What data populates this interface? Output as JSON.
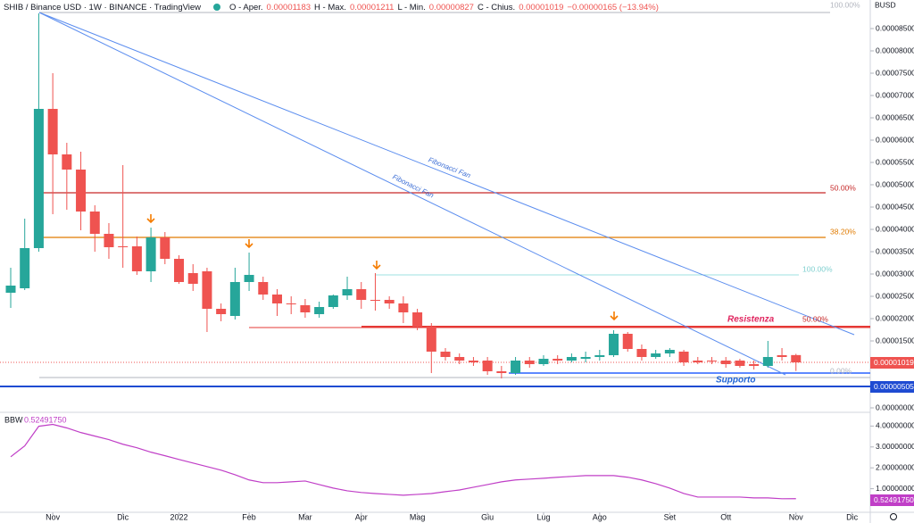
{
  "header": {
    "title": "SHIB / Binance USD · 1W · BINANCE · TradingView",
    "ohlc": [
      {
        "label": "O - Aper.",
        "value": "0.00001183"
      },
      {
        "label": "H - Max.",
        "value": "0.00001211"
      },
      {
        "label": "L - Min.",
        "value": "0.00000827"
      },
      {
        "label": "C - Chius.",
        "value": "0.00001019"
      }
    ],
    "change": "−0.00000165 (−13.94%)",
    "currency": "BUSD"
  },
  "chart_data": [
    {
      "type": "candlestick",
      "categories": [
        null,
        null,
        null,
        null,
        null,
        null,
        null,
        null,
        null,
        null,
        null,
        null,
        null,
        null,
        null,
        null,
        null,
        null,
        null,
        null,
        null,
        null,
        null,
        null,
        null,
        null,
        null,
        null,
        null,
        null,
        null,
        null,
        null,
        null,
        null,
        null,
        null,
        null,
        null,
        null,
        null,
        null,
        null,
        null,
        null,
        null,
        null,
        null,
        null,
        null,
        null,
        null,
        null,
        null,
        null,
        null,
        null
      ],
      "open": [
        2.58e-05,
        2.68e-05,
        3.58e-05,
        6.7e-05,
        5.68e-05,
        5.34e-05,
        4.4e-05,
        3.9e-05,
        3.62e-05,
        3.62e-05,
        3.06e-05,
        3.82e-05,
        3.34e-05,
        3.02e-05,
        3.06e-05,
        2.22e-05,
        2.06e-05,
        2.82e-05,
        2.82e-05,
        2.54e-05,
        2.34e-05,
        2.3e-05,
        2.1e-05,
        2.26e-05,
        2.52e-05,
        2.66e-05,
        2.42e-05,
        2.42e-05,
        2.34e-05,
        2.14e-05,
        1.82e-05,
        1.26e-05,
        1.14e-05,
        1.06e-05,
        1.06e-05,
        8.2e-06,
        7.8e-06,
        1.06e-05,
        9.8e-06,
        1.1e-05,
        1.06e-05,
        1.1e-05,
        1.14e-05,
        1.18e-05,
        1.66e-05,
        1.32e-05,
        1.14e-05,
        1.22e-05,
        1.26e-05,
        1.06e-05,
        1.06e-05,
        1.06e-05,
        1.06e-05,
        9.8e-06,
        9.4e-06,
        1.18e-05,
        1.183e-05
      ],
      "high": [
        3.14e-05,
        4.24e-05,
        8.84e-05,
        7.5e-05,
        5.94e-05,
        5.74e-05,
        4.54e-05,
        4.14e-05,
        5.44e-05,
        3.84e-05,
        4.04e-05,
        3.94e-05,
        3.42e-05,
        3.22e-05,
        3.14e-05,
        2.34e-05,
        3.14e-05,
        3.48e-05,
        2.94e-05,
        2.66e-05,
        2.5e-05,
        2.44e-05,
        2.38e-05,
        2.54e-05,
        2.94e-05,
        2.82e-05,
        3.02e-05,
        2.5e-05,
        2.5e-05,
        2.22e-05,
        1.9e-05,
        1.34e-05,
        1.22e-05,
        1.14e-05,
        1.14e-05,
        9.4e-06,
        1.14e-05,
        1.14e-05,
        1.18e-05,
        1.18e-05,
        1.22e-05,
        1.26e-05,
        1.3e-05,
        1.74e-05,
        1.7e-05,
        1.42e-05,
        1.3e-05,
        1.34e-05,
        1.3e-05,
        1.14e-05,
        1.14e-05,
        1.14e-05,
        1.1e-05,
        1.06e-05,
        1.5e-05,
        1.34e-05,
        1.211e-05
      ],
      "low": [
        2.24e-05,
        2.64e-05,
        3.5e-05,
        4.34e-05,
        4.44e-05,
        3.98e-05,
        3.5e-05,
        3.34e-05,
        3.14e-05,
        2.98e-05,
        2.82e-05,
        3.22e-05,
        2.78e-05,
        2.62e-05,
        1.7e-05,
        1.94e-05,
        1.98e-05,
        2.62e-05,
        2.42e-05,
        2.06e-05,
        2.1e-05,
        2.02e-05,
        2.02e-05,
        2.22e-05,
        2.42e-05,
        2.22e-05,
        2.18e-05,
        2.22e-05,
        1.9e-05,
        1.74e-05,
        7.8e-06,
        1.06e-05,
        9.8e-06,
        9.4e-06,
        7.4e-06,
        6.6e-06,
        7.4e-06,
        9e-06,
        9.4e-06,
        9.8e-06,
        1.02e-05,
        1.02e-05,
        1.06e-05,
        1.14e-05,
        1.26e-05,
        1.06e-05,
        1.1e-05,
        1.14e-05,
        9.4e-06,
        9.8e-06,
        9.8e-06,
        9e-06,
        9e-06,
        8.6e-06,
        9e-06,
        1.06e-05,
        8.27e-06
      ],
      "close": [
        2.74e-05,
        3.58e-05,
        6.7e-05,
        5.68e-05,
        5.34e-05,
        4.4e-05,
        3.9e-05,
        3.6e-05,
        3.6e-05,
        3.06e-05,
        3.82e-05,
        3.34e-05,
        2.82e-05,
        2.78e-05,
        2.22e-05,
        2.1e-05,
        2.82e-05,
        2.98e-05,
        2.54e-05,
        2.34e-05,
        2.32e-05,
        2.14e-05,
        2.26e-05,
        2.52e-05,
        2.66e-05,
        2.42e-05,
        2.4e-05,
        2.34e-05,
        2.14e-05,
        1.82e-05,
        1.26e-05,
        1.14e-05,
        1.06e-05,
        1.02e-05,
        8.2e-06,
        7.8e-06,
        1.06e-05,
        9.8e-06,
        1.1e-05,
        1.06e-05,
        1.14e-05,
        1.14e-05,
        1.18e-05,
        1.66e-05,
        1.32e-05,
        1.14e-05,
        1.22e-05,
        1.3e-05,
        1.02e-05,
        1.02e-05,
        1.04e-05,
        9.8e-06,
        9.4e-06,
        9.4e-06,
        1.14e-05,
        1.14e-05,
        1.019e-05
      ],
      "up_color": "#26a69a",
      "down_color": "#ef5350",
      "ylim": [
        0,
        9.14e-05
      ],
      "yticks": [
        {
          "value": 8.5e-05,
          "label": "0.00008500"
        },
        {
          "value": 8e-05,
          "label": "0.00008000"
        },
        {
          "value": 7.5e-05,
          "label": "0.00007500"
        },
        {
          "value": 7e-05,
          "label": "0.00007000"
        },
        {
          "value": 6.5e-05,
          "label": "0.00006500"
        },
        {
          "value": 6e-05,
          "label": "0.00006000"
        },
        {
          "value": 5.5e-05,
          "label": "0.00005500"
        },
        {
          "value": 5e-05,
          "label": "0.00005000"
        },
        {
          "value": 4.5e-05,
          "label": "0.00004500"
        },
        {
          "value": 4e-05,
          "label": "0.00004000"
        },
        {
          "value": 3.5e-05,
          "label": "0.00003500"
        },
        {
          "value": 3e-05,
          "label": "0.00003000"
        },
        {
          "value": 2.5e-05,
          "label": "0.00002500"
        },
        {
          "value": 2e-05,
          "label": "0.00002000"
        },
        {
          "value": 1.5e-05,
          "label": "0.00001500"
        },
        {
          "value": 1e-05,
          "label": "0.00001000"
        },
        {
          "value": 0,
          "label": "0.00000000"
        }
      ],
      "xticks": [
        {
          "value": 3,
          "label": "Nov"
        },
        {
          "value": 8,
          "label": "Dic"
        },
        {
          "value": 12,
          "label": "2022"
        },
        {
          "value": 17,
          "label": "Feb"
        },
        {
          "value": 21,
          "label": "Mar"
        },
        {
          "value": 25,
          "label": "Apr"
        },
        {
          "value": 29,
          "label": "Mag"
        },
        {
          "value": 34,
          "label": "Giu"
        },
        {
          "value": 38,
          "label": "Lug"
        },
        {
          "value": 42,
          "label": "Ago"
        },
        {
          "value": 47,
          "label": "Set"
        },
        {
          "value": 51,
          "label": "Ott"
        },
        {
          "value": 56,
          "label": "Nov"
        },
        {
          "value": 60,
          "label": "Dic"
        }
      ],
      "price_label": "0.00001019",
      "support_label": "0.00000505"
    },
    {
      "type": "line",
      "name": "BBW",
      "color": "#c03fc7",
      "values": [
        2.53,
        3.05,
        3.99,
        4.08,
        3.91,
        3.69,
        3.52,
        3.35,
        3.13,
        2.96,
        2.75,
        2.58,
        2.4,
        2.23,
        2.06,
        1.89,
        1.67,
        1.42,
        1.29,
        1.29,
        1.33,
        1.37,
        1.2,
        1.03,
        0.9,
        0.82,
        0.77,
        0.73,
        0.69,
        0.73,
        0.77,
        0.86,
        0.94,
        1.07,
        1.2,
        1.33,
        1.42,
        1.46,
        1.5,
        1.55,
        1.59,
        1.63,
        1.63,
        1.63,
        1.55,
        1.42,
        1.24,
        1.03,
        0.77,
        0.6,
        0.6,
        0.6,
        0.6,
        0.56,
        0.56,
        0.52,
        0.5249175
      ],
      "current_label": "0.52491750",
      "ylim": [
        0,
        4.7
      ],
      "yticks": [
        {
          "value": 4,
          "label": "4.00000000"
        },
        {
          "value": 3,
          "label": "3.00000000"
        },
        {
          "value": 2,
          "label": "2.00000000"
        },
        {
          "value": 1,
          "label": "1.00000000"
        }
      ]
    }
  ],
  "drawings": {
    "fib_top": "100.00%",
    "fib_50": "50.00%",
    "fib_382": "38.20%",
    "fib2_100": "100.00%",
    "fib2_50": "50.00%",
    "fib_0": "0.00%",
    "resistance": "Resistenza",
    "support": "Supporto",
    "fan_1": "Fibonacci Fan",
    "fan_2": "Fibonacci Fan"
  }
}
